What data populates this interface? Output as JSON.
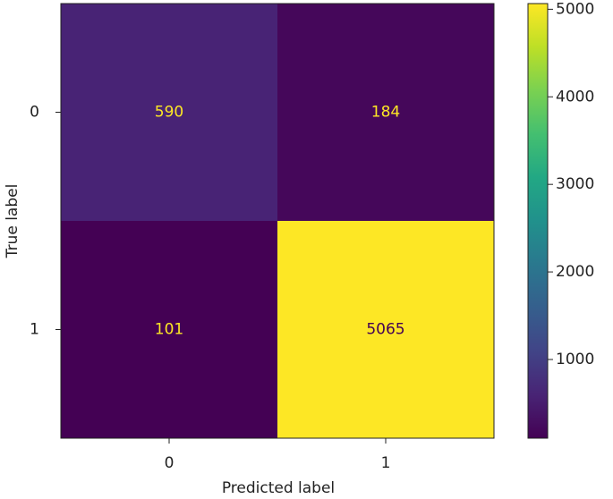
{
  "chart_data": {
    "type": "heatmap",
    "x_label": "Predicted label",
    "y_label": "True label",
    "x_categories": [
      "0",
      "1"
    ],
    "y_categories": [
      "0",
      "1"
    ],
    "values": [
      [
        590,
        184
      ],
      [
        101,
        5065
      ]
    ],
    "colormap": [
      "#440154",
      "#482475",
      "#414487",
      "#355f8d",
      "#2a788e",
      "#21918c",
      "#22a884",
      "#44bf70",
      "#7ad151",
      "#bddf26",
      "#fde725"
    ],
    "clim": [
      101,
      5065
    ],
    "cticks": [
      1000,
      2000,
      3000,
      4000,
      5000
    ]
  }
}
